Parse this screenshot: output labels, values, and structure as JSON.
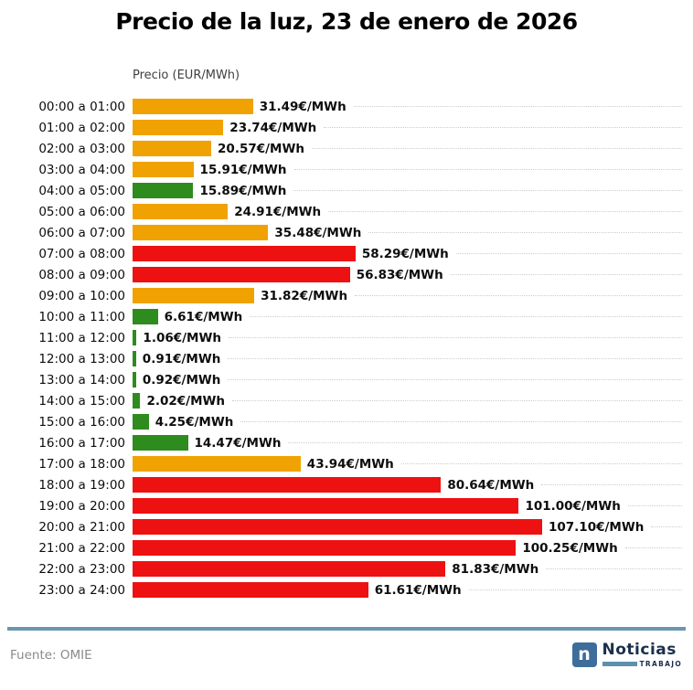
{
  "title": "Precio de la luz, 23 de enero de 2026",
  "chart_data": {
    "type": "bar",
    "orientation": "horizontal",
    "title": "Precio de la luz, 23 de enero de 2026",
    "axis_label": "Precio (EUR/MWh)",
    "value_suffix": "€/MWh",
    "xlim": [
      0,
      107.1
    ],
    "grid": "dotted-horizontal-leaders",
    "legend": "none",
    "categories": [
      "00:00 a 01:00",
      "01:00 a 02:00",
      "02:00 a 03:00",
      "03:00 a 04:00",
      "04:00 a 05:00",
      "05:00 a 06:00",
      "06:00 a 07:00",
      "07:00 a 08:00",
      "08:00 a 09:00",
      "09:00 a 10:00",
      "10:00 a 11:00",
      "11:00 a 12:00",
      "12:00 a 13:00",
      "13:00 a 14:00",
      "14:00 a 15:00",
      "15:00 a 16:00",
      "16:00 a 17:00",
      "17:00 a 18:00",
      "18:00 a 19:00",
      "19:00 a 20:00",
      "20:00 a 21:00",
      "21:00 a 22:00",
      "22:00 a 23:00",
      "23:00 a 24:00"
    ],
    "values": [
      31.49,
      23.74,
      20.57,
      15.91,
      15.89,
      24.91,
      35.48,
      58.29,
      56.83,
      31.82,
      6.61,
      1.06,
      0.91,
      0.92,
      2.02,
      4.25,
      14.47,
      43.94,
      80.64,
      101.0,
      107.1,
      100.25,
      81.83,
      61.61
    ],
    "colors": [
      "orange",
      "orange",
      "orange",
      "orange",
      "green",
      "orange",
      "orange",
      "red",
      "red",
      "orange",
      "green",
      "green",
      "green",
      "green",
      "green",
      "green",
      "green",
      "orange",
      "red",
      "red",
      "red",
      "red",
      "red",
      "red"
    ],
    "palette": {
      "orange": "#F0A202",
      "green": "#2E8B1E",
      "red": "#EE1111"
    }
  },
  "footer": {
    "source": "Fuente: OMIE",
    "logo": {
      "letter": "n",
      "name": "Noticias",
      "tagline": "TRABAJO"
    }
  },
  "ui_colors": {
    "divider": "#6A96AF",
    "logo_square": "#3D6D9B",
    "logo_text": "#1B2F4D",
    "logo_bar": "#5E8FAD",
    "gridline": "#cdcdcd"
  }
}
